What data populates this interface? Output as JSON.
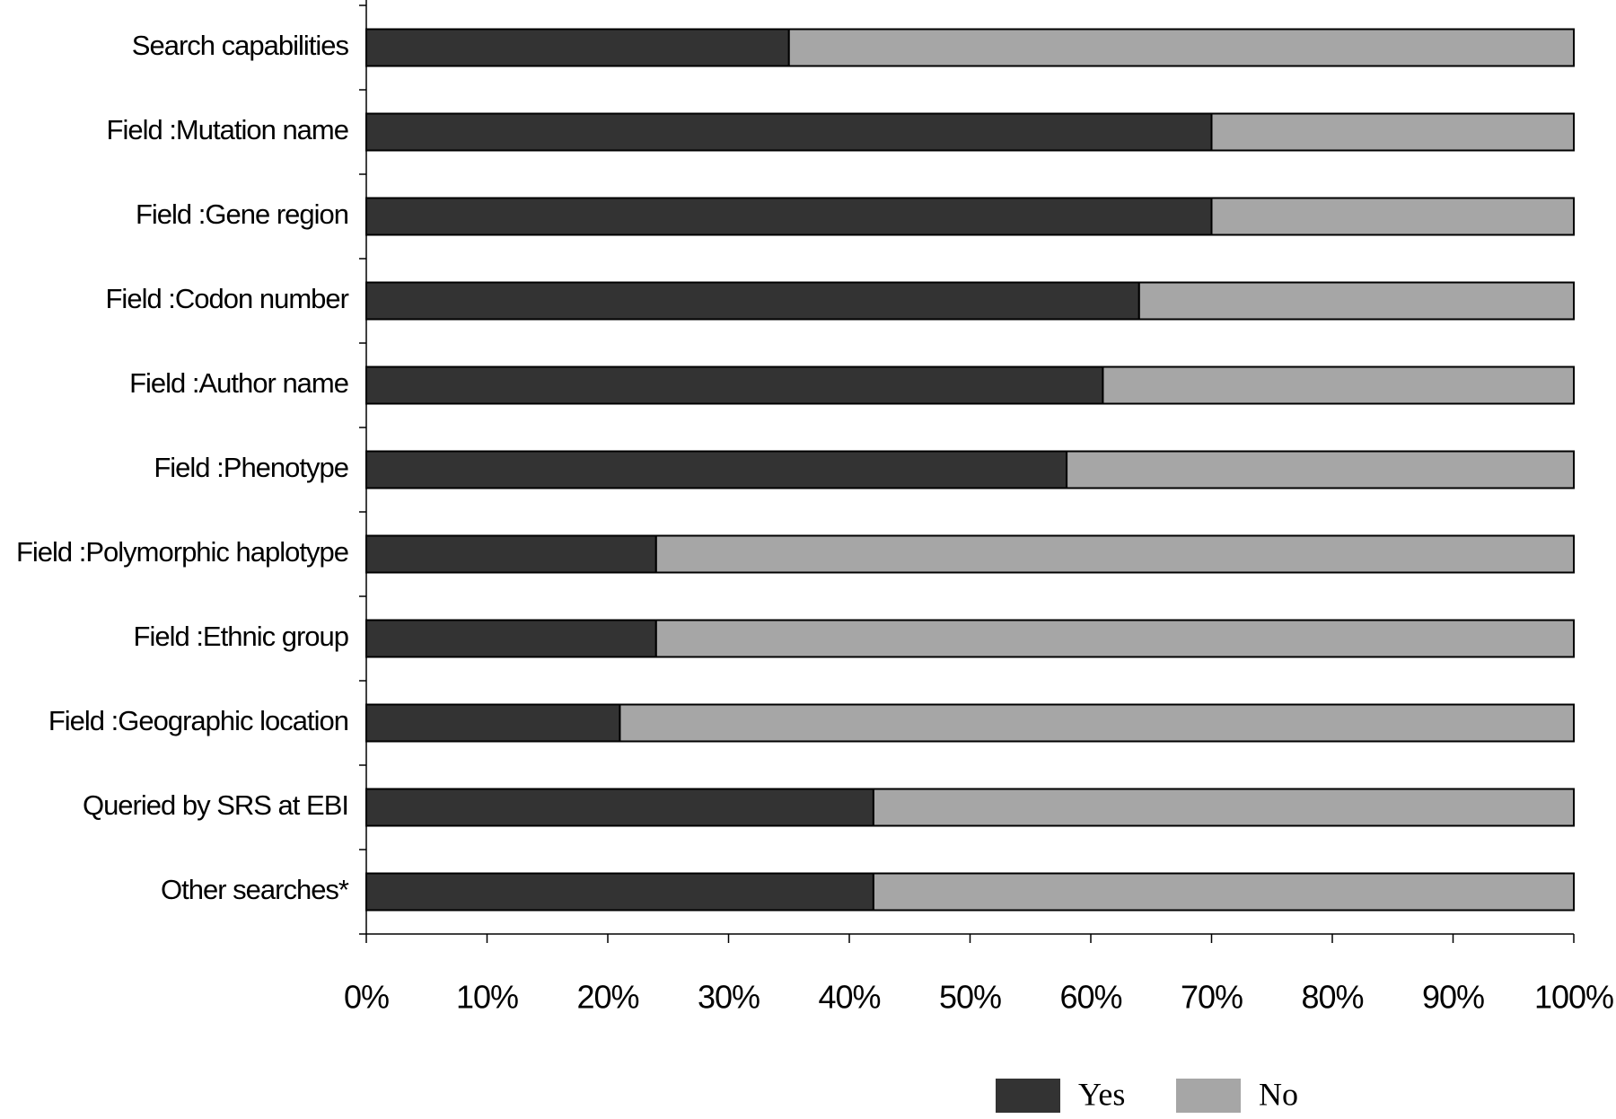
{
  "chart_data": {
    "type": "stacked_bar_horizontal",
    "categories": [
      "Search capabilities",
      "Field :Mutation name",
      "Field :Gene region",
      "Field :Codon number",
      "Field :Author name",
      "Field :Phenotype",
      "Field :Polymorphic haplotype",
      "Field :Ethnic group",
      "Field :Geographic location",
      "Queried by SRS at EBI",
      "Other searches*"
    ],
    "series": [
      {
        "name": "Yes",
        "color": "#333333",
        "values": [
          35,
          70,
          70,
          64,
          61,
          58,
          24,
          24,
          21,
          42,
          42
        ]
      },
      {
        "name": "No",
        "color": "#a6a6a6",
        "values": [
          65,
          30,
          30,
          36,
          39,
          42,
          76,
          76,
          79,
          58,
          58
        ]
      }
    ],
    "xlim": [
      0,
      100
    ],
    "xticks": [
      {
        "value": 0,
        "label": "0%"
      },
      {
        "value": 10,
        "label": "10%"
      },
      {
        "value": 20,
        "label": "20%"
      },
      {
        "value": 30,
        "label": "30%"
      },
      {
        "value": 40,
        "label": "40%"
      },
      {
        "value": 50,
        "label": "50%"
      },
      {
        "value": 60,
        "label": "60%"
      },
      {
        "value": 70,
        "label": "70%"
      },
      {
        "value": 80,
        "label": "80%"
      },
      {
        "value": 90,
        "label": "90%"
      },
      {
        "value": 100,
        "label": "100%"
      }
    ],
    "legend": "bottom-right"
  }
}
